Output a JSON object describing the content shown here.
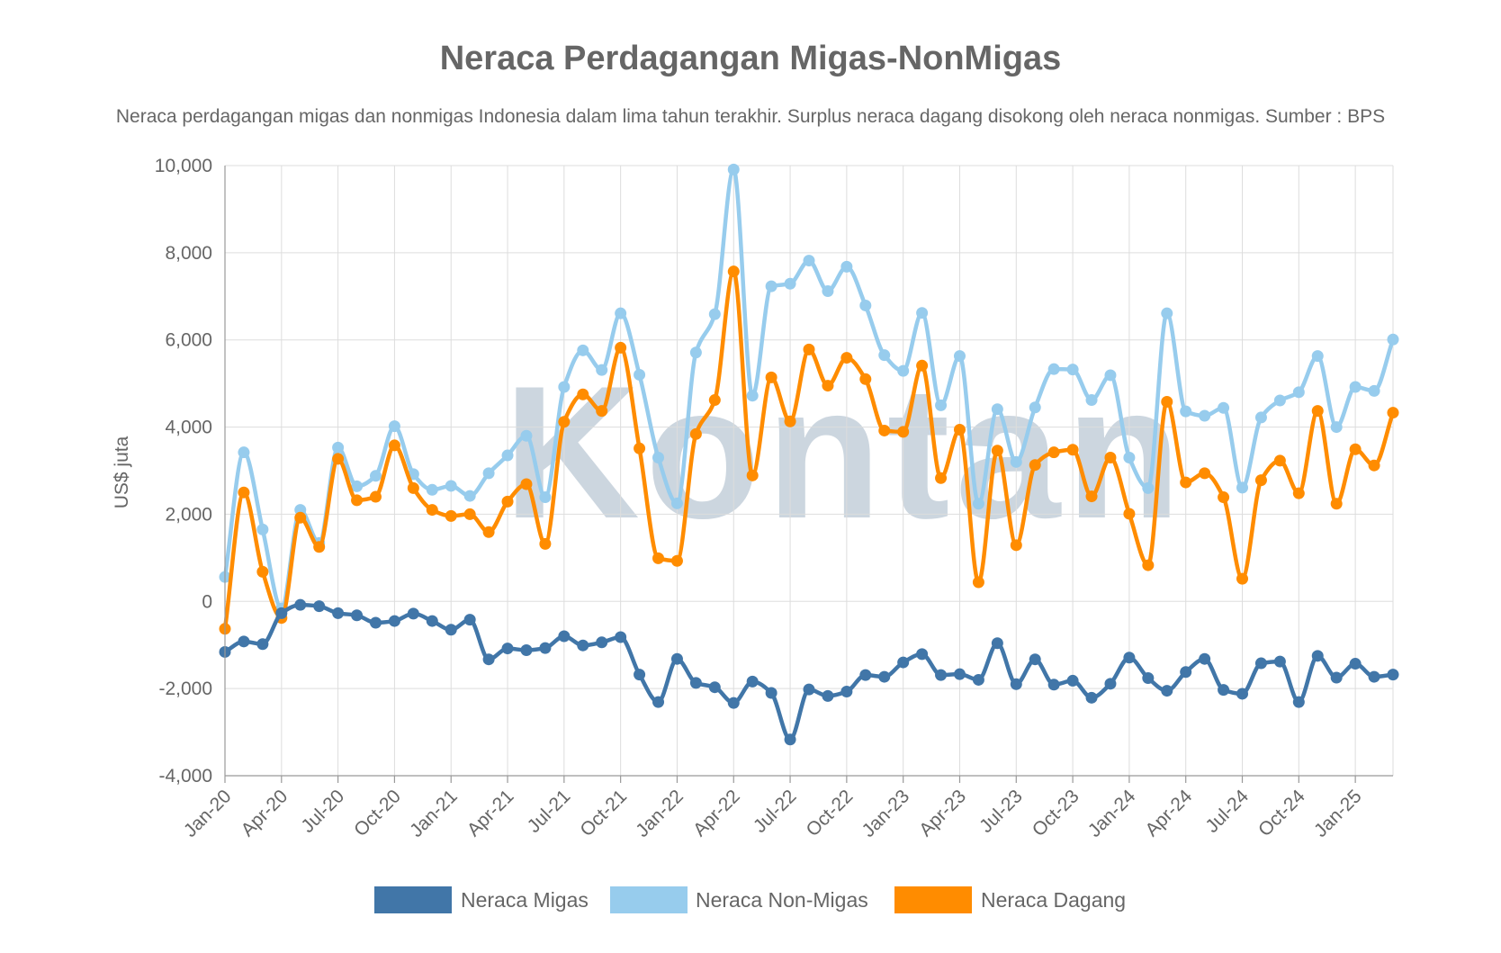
{
  "chart_data": {
    "type": "line",
    "title": "Neraca Perdagangan Migas-NonMigas",
    "subtitle": "Neraca perdagangan migas dan nonmigas Indonesia dalam lima tahun terakhir. Surplus neraca dagang disokong oleh neraca nonmigas. Sumber : BPS",
    "ylabel": "US$ juta",
    "ylim": [
      -4000,
      10000
    ],
    "yticks": [
      "-4,000",
      "-2,000",
      "0",
      "2,000",
      "4,000",
      "6,000",
      "8,000",
      "10,000"
    ],
    "ytick_values": [
      -4000,
      -2000,
      0,
      2000,
      4000,
      6000,
      8000,
      10000
    ],
    "x": [
      "Jan-20",
      "Feb-20",
      "Mar-20",
      "Apr-20",
      "May-20",
      "Jun-20",
      "Jul-20",
      "Aug-20",
      "Sep-20",
      "Oct-20",
      "Nov-20",
      "Dec-20",
      "Jan-21",
      "Feb-21",
      "Mar-21",
      "Apr-21",
      "May-21",
      "Jun-21",
      "Jul-21",
      "Aug-21",
      "Sep-21",
      "Oct-21",
      "Nov-21",
      "Dec-21",
      "Jan-22",
      "Feb-22",
      "Mar-22",
      "Apr-22",
      "May-22",
      "Jun-22",
      "Jul-22",
      "Aug-22",
      "Sep-22",
      "Oct-22",
      "Nov-22",
      "Dec-22",
      "Jan-23",
      "Feb-23",
      "Mar-23",
      "Apr-23",
      "May-23",
      "Jun-23",
      "Jul-23",
      "Aug-23",
      "Sep-23",
      "Oct-23",
      "Nov-23",
      "Dec-23",
      "Jan-24",
      "Feb-24",
      "Mar-24",
      "Apr-24",
      "May-24",
      "Jun-24",
      "Jul-24",
      "Aug-24",
      "Sep-24",
      "Oct-24",
      "Nov-24",
      "Dec-24",
      "Jan-25",
      "Feb-25",
      "Mar-25"
    ],
    "xtick_labels": [
      "Jan-20",
      "Apr-20",
      "Jul-20",
      "Oct-20",
      "Jan-21",
      "Apr-21",
      "Jul-21",
      "Oct-21",
      "Jan-22",
      "Apr-22",
      "Jul-22",
      "Oct-22",
      "Jan-23",
      "Apr-23",
      "Jul-23",
      "Oct-23",
      "Jan-24",
      "Apr-24",
      "Jul-24",
      "Oct-24",
      "Jan-25"
    ],
    "grid": true,
    "legend": "bottom-center",
    "series": [
      {
        "name": "Neraca Migas",
        "color": "#4176a8",
        "values": [
          -1160,
          -920,
          -980,
          -270,
          -80,
          -110,
          -270,
          -320,
          -490,
          -450,
          -280,
          -450,
          -650,
          -420,
          -1330,
          -1080,
          -1120,
          -1070,
          -800,
          -1010,
          -940,
          -820,
          -1680,
          -2310,
          -1320,
          -1870,
          -1970,
          -2330,
          -1840,
          -2100,
          -3170,
          -2020,
          -2170,
          -2070,
          -1690,
          -1730,
          -1400,
          -1210,
          -1690,
          -1670,
          -1800,
          -960,
          -1900,
          -1330,
          -1910,
          -1820,
          -2210,
          -1890,
          -1290,
          -1760,
          -2050,
          -1620,
          -1320,
          -2030,
          -2120,
          -1420,
          -1380,
          -2310,
          -1250,
          -1750,
          -1430,
          -1730,
          -1680
        ]
      },
      {
        "name": "Neraca Non-Migas",
        "color": "#97cced",
        "values": [
          560,
          3420,
          1650,
          -160,
          2100,
          1340,
          3530,
          2640,
          2880,
          4020,
          2920,
          2560,
          2650,
          2420,
          2940,
          3350,
          3800,
          2390,
          4920,
          5760,
          5310,
          6610,
          5200,
          3300,
          2250,
          5710,
          6590,
          9910,
          4720,
          7230,
          7290,
          7820,
          7120,
          7680,
          6790,
          5650,
          5290,
          6620,
          4500,
          5630,
          2240,
          4410,
          3200,
          4450,
          5330,
          5320,
          4620,
          5190,
          3300,
          2600,
          6610,
          4360,
          4260,
          4440,
          2610,
          4220,
          4610,
          4800,
          5630,
          4000,
          4920,
          4830,
          6010
        ]
      },
      {
        "name": "Neraca Dagang",
        "color": "#ff8c00",
        "values": [
          -630,
          2500,
          680,
          -380,
          1920,
          1250,
          3270,
          2320,
          2400,
          3580,
          2600,
          2100,
          1960,
          2000,
          1590,
          2290,
          2690,
          1320,
          4120,
          4750,
          4370,
          5820,
          3510,
          990,
          930,
          3840,
          4620,
          7570,
          2890,
          5140,
          4130,
          5780,
          4950,
          5590,
          5100,
          3920,
          3890,
          5410,
          2830,
          3940,
          440,
          3460,
          1290,
          3130,
          3420,
          3480,
          2410,
          3300,
          2010,
          830,
          4580,
          2730,
          2940,
          2390,
          520,
          2780,
          3230,
          2480,
          4370,
          2240,
          3490,
          3120,
          4330
        ]
      }
    ]
  },
  "watermark": "Kontan"
}
